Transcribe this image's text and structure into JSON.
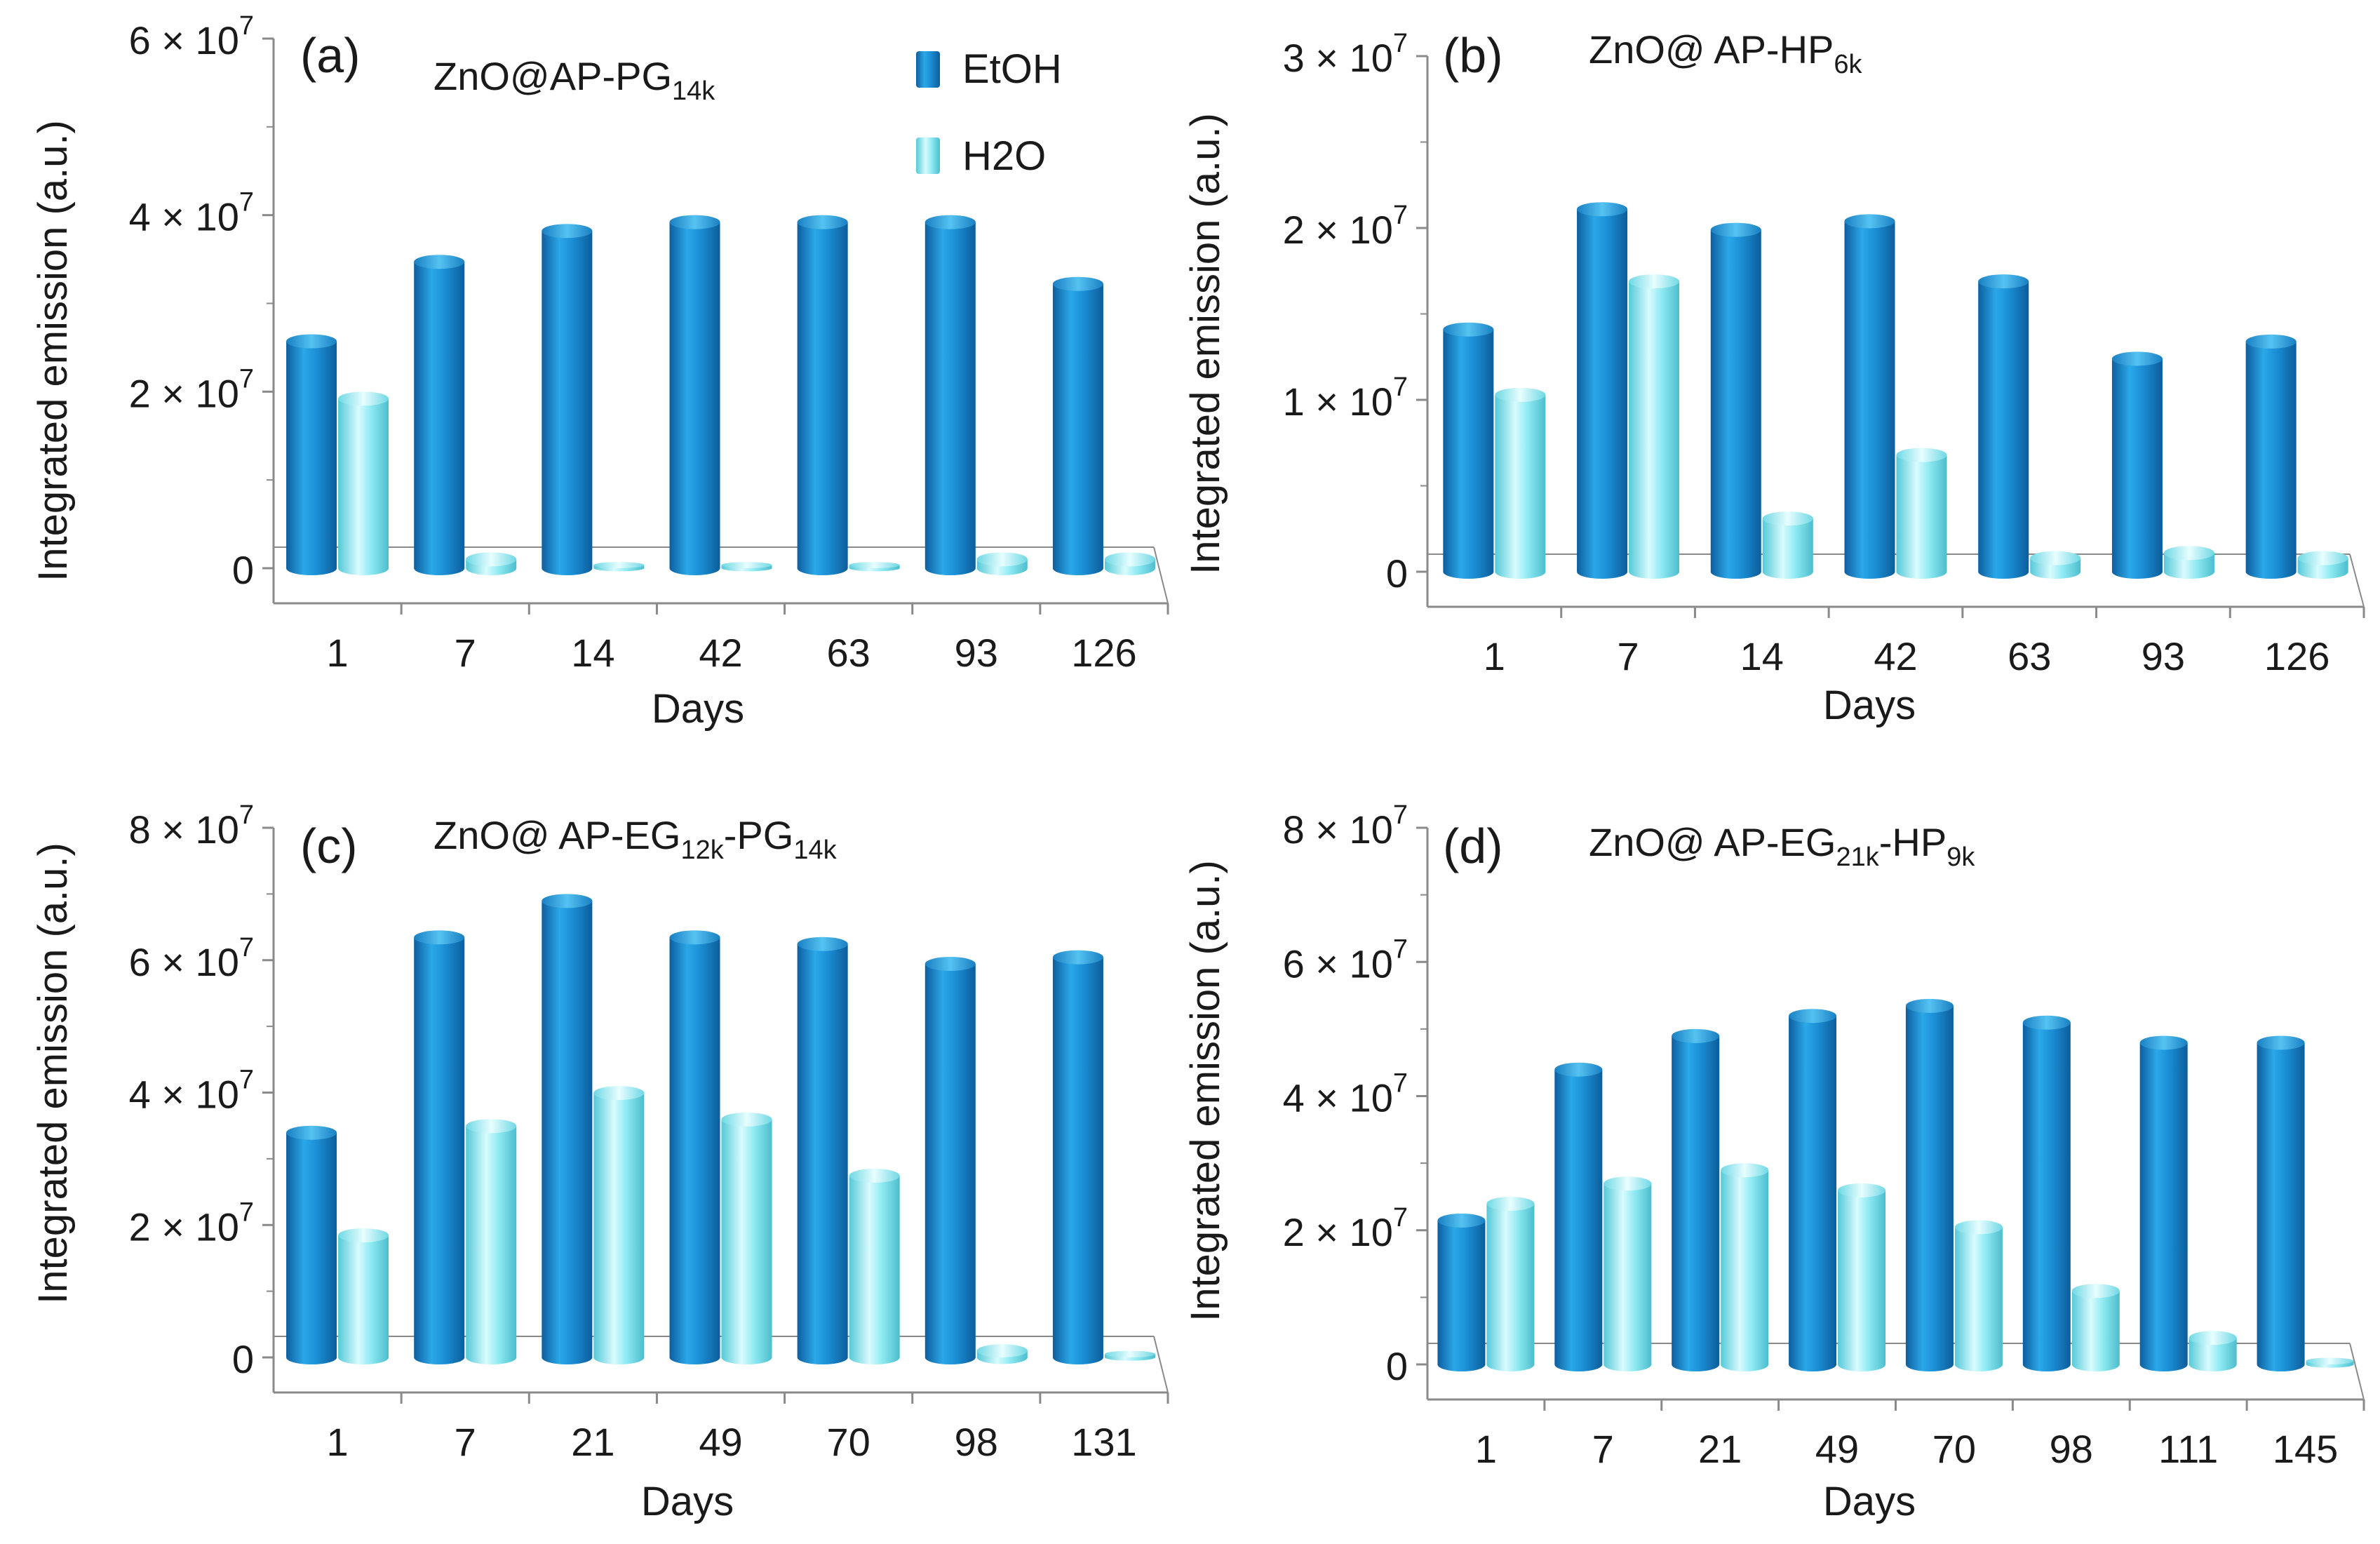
{
  "legend": {
    "items": [
      {
        "label": "EtOH",
        "color": "#1b8fd6"
      },
      {
        "label": "H2O",
        "color": "#7ee6ef"
      }
    ]
  },
  "colors": {
    "etoh": "#1b8fd6",
    "h2o": "#7ee6ef",
    "axis": "#8a8a8a"
  },
  "chart_data": [
    {
      "type": "bar",
      "panel": "(a)",
      "title": {
        "main": "ZnO@AP-PG",
        "sub": "14k",
        "rest": ""
      },
      "xlabel": "Days",
      "ylabel": "Integrated emission  (a.u.)",
      "categories": [
        "1",
        "7",
        "14",
        "42",
        "63",
        "93",
        "126"
      ],
      "ylim": [
        0,
        60000000
      ],
      "yticks": [
        {
          "v": 0,
          "mant": "0",
          "exp": ""
        },
        {
          "v": 20000000,
          "mant": "2 × 10",
          "exp": "7"
        },
        {
          "v": 40000000,
          "mant": "4 × 10",
          "exp": "7"
        },
        {
          "v": 60000000,
          "mant": "6 × 10",
          "exp": "7"
        }
      ],
      "series": [
        {
          "name": "EtOH",
          "values": [
            26500000,
            35500000,
            39000000,
            40000000,
            40000000,
            40000000,
            33000000
          ]
        },
        {
          "name": "H2O",
          "values": [
            20000000,
            1800000,
            700000,
            700000,
            700000,
            1800000,
            1800000
          ]
        }
      ]
    },
    {
      "type": "bar",
      "panel": "(b)",
      "title": {
        "main": "ZnO@ AP-HP",
        "sub": "6k",
        "rest": ""
      },
      "xlabel": "Days",
      "ylabel": "Integrated emission  (a.u.)",
      "categories": [
        "1",
        "7",
        "14",
        "42",
        "63",
        "93",
        "126"
      ],
      "ylim": [
        0,
        30000000
      ],
      "yticks": [
        {
          "v": 0,
          "mant": "0",
          "exp": ""
        },
        {
          "v": 10000000,
          "mant": "1 × 10",
          "exp": "7"
        },
        {
          "v": 20000000,
          "mant": "2 × 10",
          "exp": "7"
        },
        {
          "v": 30000000,
          "mant": "3 × 10",
          "exp": "7"
        }
      ],
      "series": [
        {
          "name": "EtOH",
          "values": [
            14500000,
            21500000,
            20300000,
            20800000,
            17300000,
            12800000,
            13800000
          ]
        },
        {
          "name": "H2O",
          "values": [
            10700000,
            17300000,
            3500000,
            7200000,
            1200000,
            1500000,
            1200000
          ]
        }
      ]
    },
    {
      "type": "bar",
      "panel": "(c)",
      "title": {
        "main": "ZnO@ AP-EG",
        "sub": "12k",
        "rest": "-PG",
        "sub2": "14k"
      },
      "xlabel": "Days",
      "ylabel": "Integrated emission  (a.u.)",
      "categories": [
        "1",
        "7",
        "21",
        "49",
        "70",
        "98",
        "131"
      ],
      "ylim": [
        0,
        80000000
      ],
      "yticks": [
        {
          "v": 0,
          "mant": "0",
          "exp": ""
        },
        {
          "v": 20000000,
          "mant": "2 × 10",
          "exp": "7"
        },
        {
          "v": 40000000,
          "mant": "4 × 10",
          "exp": "7"
        },
        {
          "v": 60000000,
          "mant": "6 × 10",
          "exp": "7"
        },
        {
          "v": 80000000,
          "mant": "8 × 10",
          "exp": "7"
        }
      ],
      "series": [
        {
          "name": "EtOH",
          "values": [
            35000000,
            64500000,
            70000000,
            64500000,
            63500000,
            60500000,
            61500000
          ]
        },
        {
          "name": "H2O",
          "values": [
            19500000,
            36000000,
            41000000,
            37000000,
            28500000,
            2000000,
            1000000
          ]
        }
      ]
    },
    {
      "type": "bar",
      "panel": "(d)",
      "title": {
        "main": "ZnO@ AP-EG",
        "sub": "21k",
        "rest": "-HP",
        "sub2": "9k"
      },
      "xlabel": "Days",
      "ylabel": "Integrated emission  (a.u.)",
      "categories": [
        "1",
        "7",
        "21",
        "49",
        "70",
        "98",
        "111",
        "145"
      ],
      "ylim": [
        0,
        80000000
      ],
      "yticks": [
        {
          "v": 0,
          "mant": "0",
          "exp": ""
        },
        {
          "v": 20000000,
          "mant": "2 × 10",
          "exp": "7"
        },
        {
          "v": 40000000,
          "mant": "4 × 10",
          "exp": "7"
        },
        {
          "v": 60000000,
          "mant": "6 × 10",
          "exp": "7"
        },
        {
          "v": 80000000,
          "mant": "8 × 10",
          "exp": "7"
        }
      ],
      "series": [
        {
          "name": "EtOH",
          "values": [
            22500000,
            45000000,
            50000000,
            53000000,
            54500000,
            52000000,
            49000000,
            49000000
          ]
        },
        {
          "name": "H2O",
          "values": [
            25000000,
            28000000,
            30000000,
            27000000,
            21500000,
            12000000,
            5000000,
            1000000
          ]
        }
      ]
    }
  ]
}
